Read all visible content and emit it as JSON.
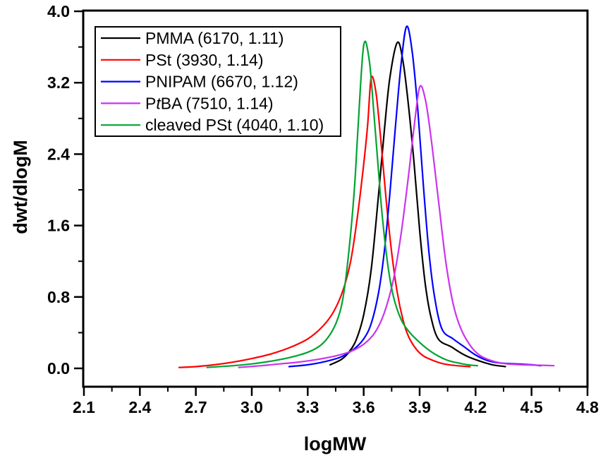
{
  "chart_data": {
    "type": "line",
    "title": "",
    "xlabel": "logMW",
    "ylabel": "dwt/dlogM",
    "xlim": [
      2.1,
      4.8
    ],
    "ylim": [
      0.0,
      4.0
    ],
    "grid": false,
    "legend_position": "top-left",
    "x_ticks": [
      2.1,
      2.4,
      2.7,
      3.0,
      3.3,
      3.6,
      3.9,
      4.2,
      4.5,
      4.8
    ],
    "x_tick_labels": [
      "2.1",
      "2.4",
      "2.7",
      "3.0",
      "3.3",
      "3.6",
      "3.9",
      "4.2",
      "4.5",
      "4.8"
    ],
    "x_minor_ticks": [
      2.25,
      2.55,
      2.85,
      3.15,
      3.45,
      3.75,
      4.05,
      4.35,
      4.65
    ],
    "y_ticks": [
      0.0,
      0.8,
      1.6,
      2.4,
      3.2,
      4.0
    ],
    "y_tick_labels": [
      "0.0",
      "0.8",
      "1.6",
      "2.4",
      "3.2",
      "4.0"
    ],
    "y_minor_ticks": [
      0.4,
      1.2,
      2.0,
      2.8,
      3.6
    ],
    "series": [
      {
        "id": "pmma",
        "label": "PMMA (6170, 1.11)",
        "label_parts": [
          {
            "text": "PMMA (6170, 1.11)",
            "italic": false
          }
        ],
        "color": "#000000",
        "peak": {
          "x": 3.78,
          "y": 3.65
        },
        "points": [
          [
            3.42,
            0.04
          ],
          [
            3.48,
            0.1
          ],
          [
            3.52,
            0.18
          ],
          [
            3.56,
            0.32
          ],
          [
            3.6,
            0.6
          ],
          [
            3.64,
            1.1
          ],
          [
            3.68,
            1.95
          ],
          [
            3.71,
            2.65
          ],
          [
            3.74,
            3.25
          ],
          [
            3.78,
            3.65
          ],
          [
            3.81,
            3.45
          ],
          [
            3.84,
            2.95
          ],
          [
            3.87,
            2.3
          ],
          [
            3.9,
            1.55
          ],
          [
            3.93,
            0.95
          ],
          [
            3.96,
            0.58
          ],
          [
            4.0,
            0.33
          ],
          [
            4.07,
            0.24
          ],
          [
            4.14,
            0.15
          ],
          [
            4.21,
            0.09
          ],
          [
            4.29,
            0.04
          ],
          [
            4.36,
            0.02
          ]
        ]
      },
      {
        "id": "pst",
        "label": "PSt (3930, 1.14)",
        "label_parts": [
          {
            "text": "PSt (3930, 1.14)",
            "italic": false
          }
        ],
        "color": "#ff0000",
        "peak": {
          "x": 3.64,
          "y": 3.25
        },
        "points": [
          [
            2.61,
            0.01
          ],
          [
            2.7,
            0.02
          ],
          [
            2.8,
            0.04
          ],
          [
            2.9,
            0.07
          ],
          [
            3.0,
            0.11
          ],
          [
            3.1,
            0.16
          ],
          [
            3.2,
            0.23
          ],
          [
            3.3,
            0.33
          ],
          [
            3.38,
            0.47
          ],
          [
            3.44,
            0.64
          ],
          [
            3.49,
            0.88
          ],
          [
            3.53,
            1.2
          ],
          [
            3.56,
            1.6
          ],
          [
            3.59,
            2.1
          ],
          [
            3.62,
            2.7
          ],
          [
            3.64,
            3.25
          ],
          [
            3.665,
            3.1
          ],
          [
            3.69,
            2.6
          ],
          [
            3.72,
            1.9
          ],
          [
            3.75,
            1.3
          ],
          [
            3.78,
            0.85
          ],
          [
            3.81,
            0.55
          ],
          [
            3.84,
            0.36
          ],
          [
            3.88,
            0.22
          ],
          [
            3.92,
            0.14
          ],
          [
            3.97,
            0.09
          ],
          [
            4.03,
            0.05
          ],
          [
            4.1,
            0.03
          ],
          [
            4.17,
            0.02
          ]
        ]
      },
      {
        "id": "pnipam",
        "label": "PNIPAM (6670, 1.12)",
        "label_parts": [
          {
            "text": "PNIPAM (6670, 1.12)",
            "italic": false
          }
        ],
        "color": "#0000ff",
        "peak": {
          "x": 3.83,
          "y": 3.83
        },
        "points": [
          [
            3.2,
            0.02
          ],
          [
            3.3,
            0.04
          ],
          [
            3.4,
            0.08
          ],
          [
            3.48,
            0.13
          ],
          [
            3.55,
            0.22
          ],
          [
            3.6,
            0.33
          ],
          [
            3.64,
            0.5
          ],
          [
            3.68,
            0.85
          ],
          [
            3.71,
            1.3
          ],
          [
            3.74,
            1.95
          ],
          [
            3.77,
            2.7
          ],
          [
            3.8,
            3.4
          ],
          [
            3.83,
            3.83
          ],
          [
            3.86,
            3.55
          ],
          [
            3.89,
            2.9
          ],
          [
            3.92,
            2.05
          ],
          [
            3.95,
            1.3
          ],
          [
            3.98,
            0.8
          ],
          [
            4.02,
            0.44
          ],
          [
            4.08,
            0.33
          ],
          [
            4.14,
            0.24
          ],
          [
            4.2,
            0.15
          ],
          [
            4.26,
            0.09
          ],
          [
            4.33,
            0.06
          ],
          [
            4.42,
            0.05
          ],
          [
            4.5,
            0.04
          ],
          [
            4.55,
            0.03
          ]
        ]
      },
      {
        "id": "ptba",
        "label": "PtBA (7510, 1.14)",
        "label_parts": [
          {
            "text": "P",
            "italic": false
          },
          {
            "text": "t",
            "italic": true
          },
          {
            "text": "BA (7510, 1.14)",
            "italic": false
          }
        ],
        "color": "#cc33ee",
        "peak": {
          "x": 3.9,
          "y": 3.15
        },
        "points": [
          [
            2.93,
            0.01
          ],
          [
            3.05,
            0.03
          ],
          [
            3.15,
            0.05
          ],
          [
            3.25,
            0.07
          ],
          [
            3.35,
            0.1
          ],
          [
            3.45,
            0.14
          ],
          [
            3.53,
            0.19
          ],
          [
            3.6,
            0.27
          ],
          [
            3.66,
            0.4
          ],
          [
            3.71,
            0.62
          ],
          [
            3.76,
            1.0
          ],
          [
            3.8,
            1.5
          ],
          [
            3.84,
            2.15
          ],
          [
            3.87,
            2.7
          ],
          [
            3.9,
            3.15
          ],
          [
            3.93,
            3.02
          ],
          [
            3.96,
            2.6
          ],
          [
            4.0,
            1.9
          ],
          [
            4.04,
            1.2
          ],
          [
            4.08,
            0.72
          ],
          [
            4.12,
            0.45
          ],
          [
            4.17,
            0.26
          ],
          [
            4.22,
            0.15
          ],
          [
            4.28,
            0.09
          ],
          [
            4.35,
            0.055
          ],
          [
            4.45,
            0.04
          ],
          [
            4.55,
            0.035
          ],
          [
            4.62,
            0.03
          ]
        ]
      },
      {
        "id": "cleaved-pst",
        "label": "cleaved PSt (4040, 1.10)",
        "label_parts": [
          {
            "text": "cleaved PSt (4040, 1.10)",
            "italic": false
          }
        ],
        "color": "#00a432",
        "peak": {
          "x": 3.6,
          "y": 3.62
        },
        "points": [
          [
            2.76,
            0.01
          ],
          [
            2.9,
            0.03
          ],
          [
            3.0,
            0.05
          ],
          [
            3.1,
            0.08
          ],
          [
            3.2,
            0.12
          ],
          [
            3.3,
            0.18
          ],
          [
            3.37,
            0.26
          ],
          [
            3.42,
            0.38
          ],
          [
            3.46,
            0.55
          ],
          [
            3.49,
            0.8
          ],
          [
            3.52,
            1.3
          ],
          [
            3.55,
            2.0
          ],
          [
            3.57,
            2.7
          ],
          [
            3.6,
            3.62
          ],
          [
            3.63,
            3.45
          ],
          [
            3.655,
            2.85
          ],
          [
            3.68,
            2.2
          ],
          [
            3.7,
            1.7
          ],
          [
            3.73,
            1.15
          ],
          [
            3.76,
            0.8
          ],
          [
            3.8,
            0.55
          ],
          [
            3.84,
            0.42
          ],
          [
            3.89,
            0.31
          ],
          [
            3.94,
            0.22
          ],
          [
            3.99,
            0.15
          ],
          [
            4.05,
            0.09
          ],
          [
            4.11,
            0.06
          ],
          [
            4.16,
            0.04
          ],
          [
            4.21,
            0.03
          ]
        ]
      }
    ]
  }
}
